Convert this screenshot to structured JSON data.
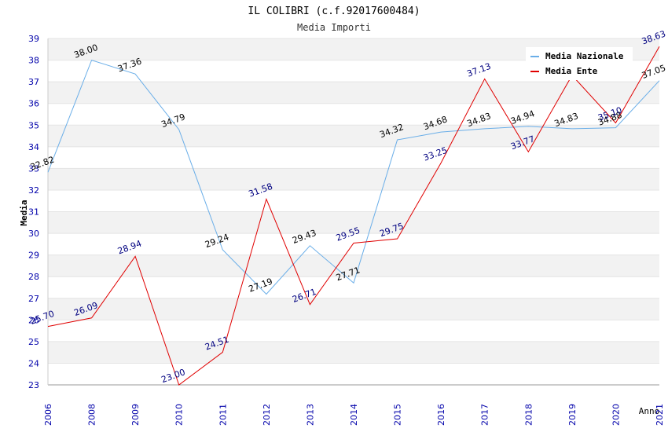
{
  "chart_data": {
    "type": "line",
    "title": "IL COLIBRI (c.f.92017600484)",
    "subtitle": "Media Importi",
    "xlabel": "Anno",
    "ylabel": "Media",
    "ylim": [
      23,
      39
    ],
    "yticks": [
      "23",
      "24",
      "25",
      "26",
      "27",
      "28",
      "29",
      "30",
      "31",
      "32",
      "33",
      "34",
      "35",
      "36",
      "37",
      "38",
      "39"
    ],
    "categories": [
      "2006",
      "2008",
      "2009",
      "2010",
      "2011",
      "2012",
      "2013",
      "2014",
      "2015",
      "2016",
      "2017",
      "2018",
      "2019",
      "2020",
      "2021"
    ],
    "series": [
      {
        "name": "Media Nazionale",
        "color": "#6aaee8",
        "values": [
          32.82,
          38.0,
          37.36,
          34.79,
          29.24,
          27.19,
          29.43,
          27.71,
          34.32,
          34.68,
          34.83,
          34.94,
          34.83,
          34.88,
          37.05
        ],
        "labels": [
          "32.82",
          "38.00",
          "37.36",
          "34.79",
          "29.24",
          "27.19",
          "29.43",
          "27.71",
          "34.32",
          "34.68",
          "34.83",
          "34.94",
          "34.83",
          "34.88",
          "37.05"
        ]
      },
      {
        "name": "Media Ente",
        "color": "#e00000",
        "values": [
          25.7,
          26.09,
          28.94,
          23.0,
          24.51,
          31.58,
          26.71,
          29.55,
          29.75,
          33.25,
          37.13,
          33.77,
          37.3,
          35.1,
          38.63
        ],
        "labels": [
          "25.70",
          "26.09",
          "28.94",
          "23.00",
          "24.51",
          "31.58",
          "26.71",
          "29.55",
          "29.75",
          "33.25",
          "37.13",
          "33.77",
          "",
          "35.10",
          "38.63"
        ]
      }
    ],
    "legend": "top-right",
    "grid": true
  }
}
